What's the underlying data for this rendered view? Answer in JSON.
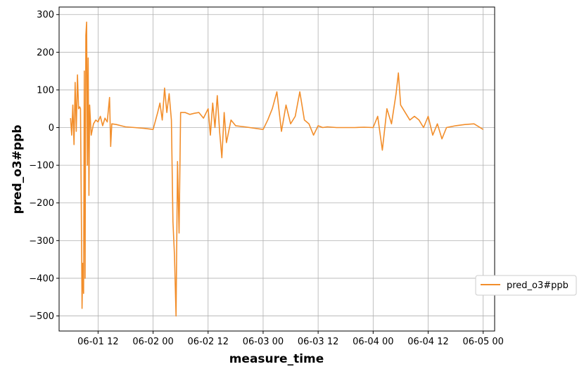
{
  "chart_data": {
    "type": "line",
    "xlabel": "measure_time",
    "ylabel": "pred_o3#ppb",
    "legend_position": "lower-right (outside plot)",
    "grid": true,
    "line_color": "#f28e2b",
    "x_ticks": [
      "06-01 12",
      "06-02 00",
      "06-02 12",
      "06-03 00",
      "06-03 12",
      "06-04 00",
      "06-04 12",
      "06-05 00"
    ],
    "y_ticks": [
      "300",
      "200",
      "100",
      "0",
      "−100",
      "−200",
      "−300",
      "−400",
      "−500"
    ],
    "ylim": [
      -540,
      320
    ],
    "xlim": [
      "2023-06-01 03:30",
      "2023-06-05 02:30"
    ],
    "series": [
      {
        "name": "pred_o3#ppb",
        "points": [
          [
            "2023-06-01 06:00",
            25
          ],
          [
            "2023-06-01 06:15",
            -20
          ],
          [
            "2023-06-01 06:30",
            60
          ],
          [
            "2023-06-01 06:45",
            -45
          ],
          [
            "2023-06-01 07:00",
            120
          ],
          [
            "2023-06-01 07:15",
            -10
          ],
          [
            "2023-06-01 07:30",
            140
          ],
          [
            "2023-06-01 07:45",
            50
          ],
          [
            "2023-06-01 08:00",
            55
          ],
          [
            "2023-06-01 08:10",
            50
          ],
          [
            "2023-06-01 08:20",
            -200
          ],
          [
            "2023-06-01 08:30",
            -480
          ],
          [
            "2023-06-01 08:40",
            -360
          ],
          [
            "2023-06-01 08:50",
            -440
          ],
          [
            "2023-06-01 09:00",
            150
          ],
          [
            "2023-06-01 09:10",
            -400
          ],
          [
            "2023-06-01 09:20",
            245
          ],
          [
            "2023-06-01 09:30",
            280
          ],
          [
            "2023-06-01 09:40",
            -100
          ],
          [
            "2023-06-01 09:50",
            185
          ],
          [
            "2023-06-01 10:00",
            -180
          ],
          [
            "2023-06-01 10:10",
            60
          ],
          [
            "2023-06-01 10:30",
            -20
          ],
          [
            "2023-06-01 11:00",
            10
          ],
          [
            "2023-06-01 11:30",
            20
          ],
          [
            "2023-06-01 12:00",
            15
          ],
          [
            "2023-06-01 12:30",
            30
          ],
          [
            "2023-06-01 13:00",
            5
          ],
          [
            "2023-06-01 13:30",
            25
          ],
          [
            "2023-06-01 14:00",
            15
          ],
          [
            "2023-06-01 14:30",
            80
          ],
          [
            "2023-06-01 14:45",
            -50
          ],
          [
            "2023-06-01 15:00",
            10
          ],
          [
            "2023-06-01 16:00",
            8
          ],
          [
            "2023-06-01 17:00",
            5
          ],
          [
            "2023-06-01 18:00",
            2
          ],
          [
            "2023-06-01 20:00",
            0
          ],
          [
            "2023-06-01 22:00",
            -2
          ],
          [
            "2023-06-02 00:00",
            -5
          ],
          [
            "2023-06-02 01:00",
            40
          ],
          [
            "2023-06-02 01:30",
            65
          ],
          [
            "2023-06-02 02:00",
            20
          ],
          [
            "2023-06-02 02:30",
            105
          ],
          [
            "2023-06-02 03:00",
            40
          ],
          [
            "2023-06-02 03:30",
            90
          ],
          [
            "2023-06-02 04:00",
            20
          ],
          [
            "2023-06-02 04:20",
            -250
          ],
          [
            "2023-06-02 04:40",
            -340
          ],
          [
            "2023-06-02 05:00",
            -500
          ],
          [
            "2023-06-02 05:20",
            -90
          ],
          [
            "2023-06-02 05:40",
            -280
          ],
          [
            "2023-06-02 06:00",
            40
          ],
          [
            "2023-06-02 07:00",
            40
          ],
          [
            "2023-06-02 08:00",
            35
          ],
          [
            "2023-06-02 09:00",
            38
          ],
          [
            "2023-06-02 10:00",
            40
          ],
          [
            "2023-06-02 11:00",
            25
          ],
          [
            "2023-06-02 12:00",
            50
          ],
          [
            "2023-06-02 12:30",
            -20
          ],
          [
            "2023-06-02 13:00",
            65
          ],
          [
            "2023-06-02 13:30",
            0
          ],
          [
            "2023-06-02 14:00",
            85
          ],
          [
            "2023-06-02 14:30",
            -10
          ],
          [
            "2023-06-02 15:00",
            -80
          ],
          [
            "2023-06-02 15:30",
            40
          ],
          [
            "2023-06-02 16:00",
            -40
          ],
          [
            "2023-06-02 17:00",
            20
          ],
          [
            "2023-06-02 18:00",
            5
          ],
          [
            "2023-06-02 20:00",
            2
          ],
          [
            "2023-06-03 00:00",
            -5
          ],
          [
            "2023-06-03 01:00",
            20
          ],
          [
            "2023-06-03 02:00",
            50
          ],
          [
            "2023-06-03 03:00",
            95
          ],
          [
            "2023-06-03 04:00",
            -10
          ],
          [
            "2023-06-03 05:00",
            60
          ],
          [
            "2023-06-03 06:00",
            10
          ],
          [
            "2023-06-03 07:00",
            30
          ],
          [
            "2023-06-03 08:00",
            95
          ],
          [
            "2023-06-03 09:00",
            20
          ],
          [
            "2023-06-03 10:00",
            10
          ],
          [
            "2023-06-03 11:00",
            -20
          ],
          [
            "2023-06-03 12:00",
            5
          ],
          [
            "2023-06-03 13:00",
            0
          ],
          [
            "2023-06-03 14:00",
            2
          ],
          [
            "2023-06-03 16:00",
            0
          ],
          [
            "2023-06-03 18:00",
            0
          ],
          [
            "2023-06-03 20:00",
            0
          ],
          [
            "2023-06-03 22:00",
            1
          ],
          [
            "2023-06-04 00:00",
            0
          ],
          [
            "2023-06-04 01:00",
            30
          ],
          [
            "2023-06-04 02:00",
            -60
          ],
          [
            "2023-06-04 03:00",
            50
          ],
          [
            "2023-06-04 04:00",
            10
          ],
          [
            "2023-06-04 05:00",
            90
          ],
          [
            "2023-06-04 05:30",
            145
          ],
          [
            "2023-06-04 06:00",
            60
          ],
          [
            "2023-06-04 07:00",
            40
          ],
          [
            "2023-06-04 08:00",
            20
          ],
          [
            "2023-06-04 09:00",
            30
          ],
          [
            "2023-06-04 10:00",
            20
          ],
          [
            "2023-06-04 11:00",
            0
          ],
          [
            "2023-06-04 12:00",
            30
          ],
          [
            "2023-06-04 13:00",
            -20
          ],
          [
            "2023-06-04 14:00",
            10
          ],
          [
            "2023-06-04 15:00",
            -30
          ],
          [
            "2023-06-04 16:00",
            0
          ],
          [
            "2023-06-04 18:00",
            5
          ],
          [
            "2023-06-04 20:00",
            8
          ],
          [
            "2023-06-04 22:00",
            10
          ],
          [
            "2023-06-05 00:00",
            -5
          ]
        ]
      }
    ]
  }
}
